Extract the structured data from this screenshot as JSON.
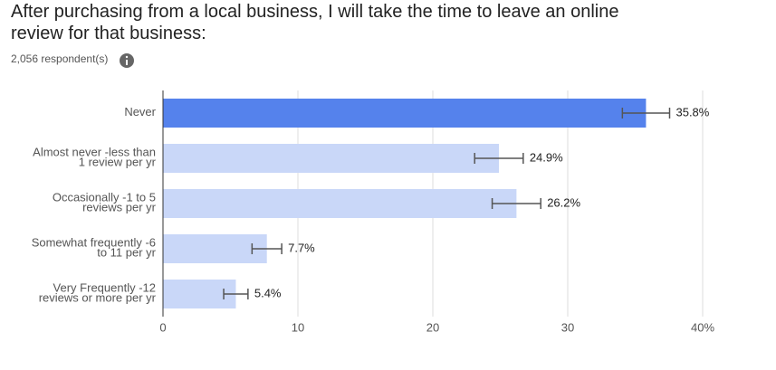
{
  "chart_data": {
    "type": "bar",
    "orientation": "horizontal",
    "title": "After purchasing from a local business, I will take the time to leave an online review for that business:",
    "subtitle": "2,056 respondent(s)",
    "categories": [
      "Never",
      "Almost never -less than 1 review per yr",
      "Occasionally -1 to 5 reviews per yr",
      "Somewhat frequently -6 to 11 per yr",
      "Very Frequently -12 reviews or more per yr"
    ],
    "values": [
      35.8,
      24.9,
      26.2,
      7.7,
      5.4
    ],
    "value_labels": [
      "35.8%",
      "24.9%",
      "26.2%",
      "7.7%",
      "5.4%"
    ],
    "errors": [
      1.75,
      1.8,
      1.8,
      1.1,
      0.9
    ],
    "colors": [
      "#5582ec",
      "#c9d7f8",
      "#c9d7f8",
      "#c9d7f8",
      "#c9d7f8"
    ],
    "xlim": [
      0,
      40
    ],
    "xticks": [
      0,
      10,
      20,
      30,
      {
        "value": 40,
        "label": "40%"
      }
    ],
    "grid": true
  }
}
